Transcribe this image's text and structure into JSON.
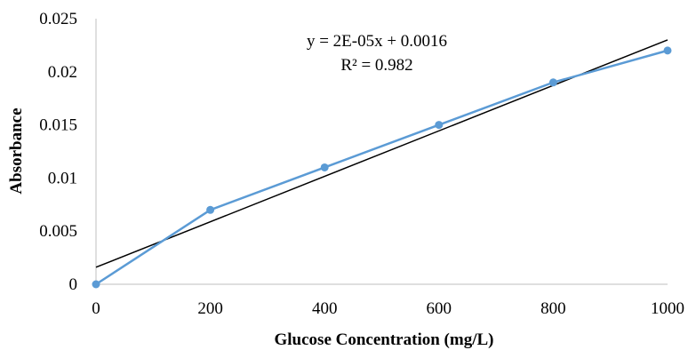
{
  "chart_data": {
    "type": "scatter",
    "title": "",
    "xlabel": "Glucose  Concentration  (mg/L)",
    "ylabel": "Absorbance",
    "xlim": [
      0,
      1000
    ],
    "ylim": [
      0,
      0.025
    ],
    "x_ticks": [
      0,
      200,
      400,
      600,
      800,
      1000
    ],
    "y_ticks": [
      0,
      0.005,
      0.01,
      0.015,
      0.02,
      0.025
    ],
    "x_tick_labels": [
      "0",
      "200",
      "400",
      "600",
      "800",
      "1000"
    ],
    "y_tick_labels": [
      "0",
      "0.005",
      "0.01",
      "0.015",
      "0.02",
      "0.025"
    ],
    "grid": false,
    "legend": "none",
    "series": [
      {
        "x": [
          0,
          200,
          400,
          600,
          800,
          1000
        ],
        "y": [
          0,
          0.007,
          0.011,
          0.015,
          0.019,
          0.022
        ],
        "color": "#5b9bd5",
        "mode": "lines+markers"
      }
    ],
    "trendline": {
      "type": "linear",
      "slope": 2.14e-05,
      "intercept": 0.0016,
      "color": "#000000"
    },
    "annotations": [
      "y = 2E-05x + 0.0016",
      "R² = 0.982"
    ]
  },
  "colors": {
    "axis": "#bfbfbf",
    "series": "#5b9bd5",
    "trendline": "#000000"
  }
}
